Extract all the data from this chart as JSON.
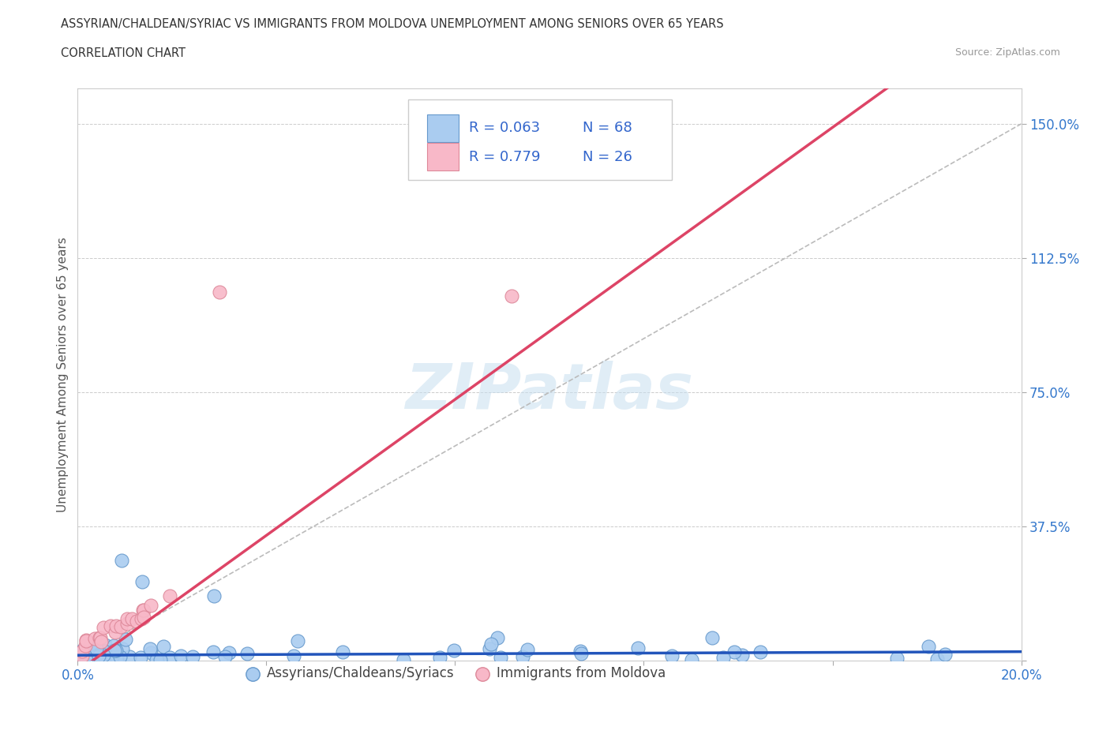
{
  "title_line1": "ASSYRIAN/CHALDEAN/SYRIAC VS IMMIGRANTS FROM MOLDOVA UNEMPLOYMENT AMONG SENIORS OVER 65 YEARS",
  "title_line2": "CORRELATION CHART",
  "source_text": "Source: ZipAtlas.com",
  "ylabel": "Unemployment Among Seniors over 65 years",
  "xlim": [
    0.0,
    0.2
  ],
  "ylim": [
    0.0,
    1.6
  ],
  "xticks": [
    0.0,
    0.04,
    0.08,
    0.12,
    0.16,
    0.2
  ],
  "xtick_labels": [
    "0.0%",
    "",
    "",
    "",
    "",
    "20.0%"
  ],
  "ytick_positions": [
    0.0,
    0.375,
    0.75,
    1.125,
    1.5
  ],
  "ytick_labels": [
    "",
    "37.5%",
    "75.0%",
    "112.5%",
    "150.0%"
  ],
  "blue_color": "#aaccf0",
  "blue_edge": "#6699cc",
  "pink_color": "#f8b8c8",
  "pink_edge": "#dd8899",
  "blue_trend_color": "#2255bb",
  "pink_trend_color": "#dd4466",
  "legend_R1": "R = 0.063",
  "legend_N1": "N = 68",
  "legend_R2": "R = 0.779",
  "legend_N2": "N = 26",
  "legend_color": "#3366cc",
  "legend_label1": "Assyrians/Chaldeans/Syriacs",
  "legend_label2": "Immigrants from Moldova",
  "watermark": "ZIPatlas",
  "grid_color": "#cccccc",
  "background_color": "#ffffff",
  "title_color": "#333333",
  "source_color": "#999999",
  "ylabel_color": "#555555",
  "tick_label_color": "#3377cc"
}
